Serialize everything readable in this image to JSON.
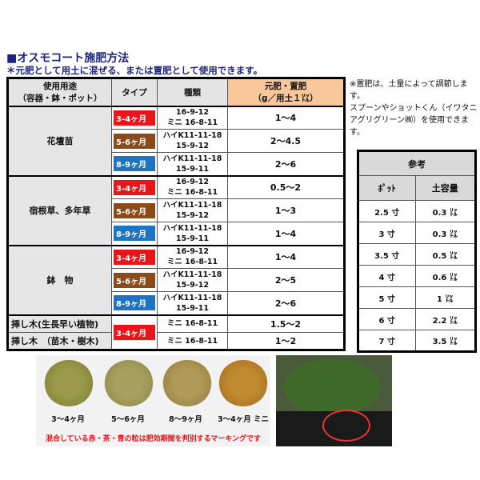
{
  "title": "■オスモコート施肥方法",
  "subtitle": "＊元肥として用土に混ぜる、または置肥として使用できます。",
  "main_table": {
    "headers": {
      "use": "使用用途",
      "use_sub": "（容器・鉢・ポット）",
      "type": "タイプ",
      "kind": "種類",
      "amount": "元肥・置肥",
      "amount_sub": "（g／用土１㍑）"
    },
    "groups": [
      {
        "use": "花壇苗",
        "rows": [
          {
            "type": "3-4ヶ月",
            "color": "#e8151b",
            "kind1": "16-9-12",
            "kind2": "ミニ 16-8-11",
            "amount": "1～4"
          },
          {
            "type": "5-6ヶ月",
            "color": "#8b4a1a",
            "kind1": "ハイK11-11-18",
            "kind2": "15-9-12",
            "amount": "2～4.5"
          },
          {
            "type": "8-9ヶ月",
            "color": "#1f73c0",
            "kind1": "ハイK11-11-18",
            "kind2": "15-9-11",
            "amount": "2～6"
          }
        ]
      },
      {
        "use": "宿根草、多年草",
        "rows": [
          {
            "type": "3-4ヶ月",
            "color": "#e8151b",
            "kind1": "16-9-12",
            "kind2": "ミニ 16-8-11",
            "amount": "0.5～2"
          },
          {
            "type": "5-6ヶ月",
            "color": "#8b4a1a",
            "kind1": "ハイK11-11-18",
            "kind2": "15-9-12",
            "amount": "1～3"
          },
          {
            "type": "8-9ヶ月",
            "color": "#1f73c0",
            "kind1": "ハイK11-11-18",
            "kind2": "15-9-11",
            "amount": "1～4"
          }
        ]
      },
      {
        "use": "鉢　物",
        "rows": [
          {
            "type": "3-4ヶ月",
            "color": "#e8151b",
            "kind1": "16-9-12",
            "kind2": "ミニ 16-8-11",
            "amount": "1～4"
          },
          {
            "type": "5-6ヶ月",
            "color": "#8b4a1a",
            "kind1": "ハイK11-11-18",
            "kind2": "15-9-12",
            "amount": "2～5"
          },
          {
            "type": "8-9ヶ月",
            "color": "#1f73c0",
            "kind1": "ハイK11-11-18",
            "kind2": "15-9-11",
            "amount": "2～6"
          }
        ]
      }
    ],
    "cuttings": {
      "type": "3-4ヶ月",
      "color": "#e8151b",
      "rows": [
        {
          "use": "挿し木(生長早い植物)",
          "kind": "ミニ 16-8-11",
          "amount": "1.5～2"
        },
        {
          "use": "挿し木　（苗木・樹木)",
          "kind": "ミニ 16-8-11",
          "amount": "1～2"
        }
      ]
    }
  },
  "note": [
    "※置肥は、土量によって調節します。",
    "スプーンやショットくん（イワタニアグリグリーン㈱）を使用できます。"
  ],
  "ref_table": {
    "title": "参考",
    "col1": "ﾎﾟｯﾄ",
    "col2": "土容量",
    "rows": [
      [
        "2.5 寸",
        "0.3 ㍑"
      ],
      [
        "3 寸",
        "0.3 ㍑"
      ],
      [
        "3.5 寸",
        "0.5 ㍑"
      ],
      [
        "4 寸",
        "0.6 ㍑"
      ],
      [
        "5 寸",
        "1 ㍑"
      ],
      [
        "6 寸",
        "2.2 ㍑"
      ],
      [
        "7 寸",
        "3.5 ㍑"
      ]
    ]
  },
  "photo": {
    "labels": [
      "3～4ヶ月",
      "5～6ヶ月",
      "8～9ヶ月",
      "3～4ヶ月 ミニ"
    ],
    "caption": "混合している赤・茶・青の粒は肥効期間を判別するマーキングです",
    "caption_color": "#e8151b"
  }
}
